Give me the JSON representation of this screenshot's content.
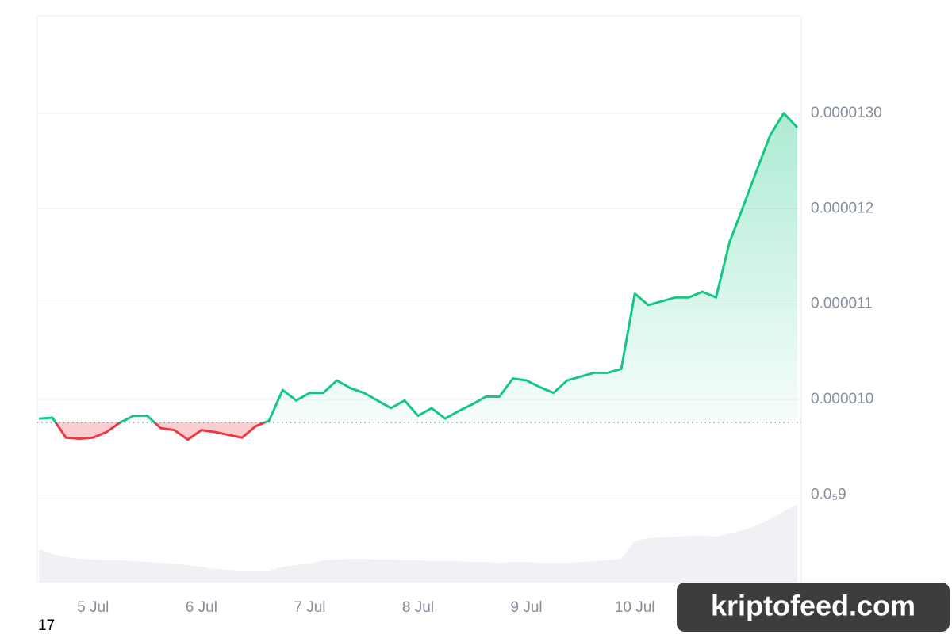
{
  "chart_data": {
    "type": "line",
    "categories": [
      null,
      null,
      null,
      null,
      "5 Jul",
      null,
      null,
      null,
      null,
      null,
      null,
      null,
      "6 Jul",
      null,
      null,
      null,
      null,
      null,
      null,
      null,
      "7 Jul",
      null,
      null,
      null,
      null,
      null,
      null,
      null,
      "8 Jul",
      null,
      null,
      null,
      null,
      null,
      null,
      null,
      "9 Jul",
      null,
      null,
      null,
      null,
      null,
      null,
      null,
      "10 Jul",
      null,
      null,
      null,
      null,
      null,
      null,
      null,
      null,
      null,
      null,
      null,
      null
    ],
    "values": [
      9.8e-06,
      9.81e-06,
      9.6e-06,
      9.59e-06,
      9.6e-06,
      9.66e-06,
      9.76e-06,
      9.83e-06,
      9.83e-06,
      9.7e-06,
      9.68e-06,
      9.58e-06,
      9.68e-06,
      9.66e-06,
      9.63e-06,
      9.6e-06,
      9.72e-06,
      9.78e-06,
      1.01e-05,
      9.99e-06,
      1.007e-05,
      1.007e-05,
      1.02e-05,
      1.012e-05,
      1.007e-05,
      9.99e-06,
      9.91e-06,
      9.99e-06,
      9.83e-06,
      9.91e-06,
      9.8e-06,
      9.88e-06,
      9.95e-06,
      1.003e-05,
      1.003e-05,
      1.022e-05,
      1.02e-05,
      1.013e-05,
      1.007e-05,
      1.02e-05,
      1.024e-05,
      1.028e-05,
      1.028e-05,
      1.032e-05,
      1.111e-05,
      1.099e-05,
      1.103e-05,
      1.107e-05,
      1.107e-05,
      1.113e-05,
      1.107e-05,
      1.165e-05,
      1.202e-05,
      1.24e-05,
      1.277e-05,
      1.3e-05,
      1.285e-05
    ],
    "baseline": 9.76e-06,
    "up_color": "#16c784",
    "down_color": "#ea3943",
    "volume": [
      42,
      36,
      32,
      30,
      29,
      28,
      28,
      27,
      26,
      25,
      24,
      22,
      20,
      17,
      16,
      15,
      15,
      15,
      20,
      22,
      24,
      28,
      29,
      30,
      30,
      29,
      29,
      28,
      28,
      27,
      27,
      27,
      26,
      26,
      25,
      26,
      26,
      25,
      25,
      25,
      26,
      27,
      28,
      30,
      52,
      56,
      57,
      58,
      59,
      59,
      58,
      62,
      66,
      72,
      80,
      90,
      98
    ],
    "vlim": [
      0,
      100
    ],
    "volume_color": "#eff1f4",
    "ylim": [
      8.083e-06,
      1.402e-05
    ],
    "yticks": [
      {
        "value": 9e-06,
        "label": "0.0₅9"
      },
      {
        "value": 1e-05,
        "label": "0.000010"
      },
      {
        "value": 1.1e-05,
        "label": "0.000011"
      },
      {
        "value": 1.2e-05,
        "label": "0.000012"
      },
      {
        "value": 1.3e-05,
        "label": "0.0000130"
      }
    ],
    "grid": true,
    "annotations": [
      "17"
    ],
    "watermark": "kriptofeed.com"
  }
}
